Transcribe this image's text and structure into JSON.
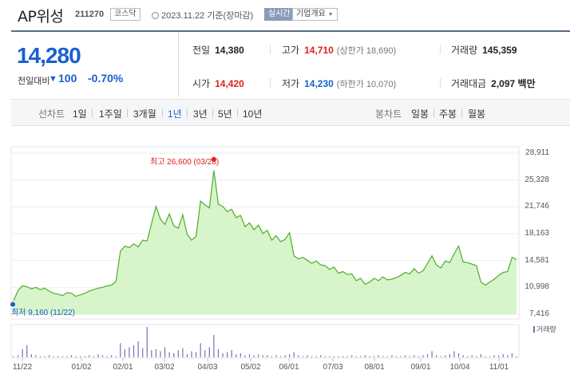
{
  "header": {
    "stock_name": "AP위성",
    "stock_code": "211270",
    "market": "코스닥",
    "date_text": "2023.11.22 기준(장마감)",
    "realtime_label": "실시간",
    "company_info_label": "기업개요"
  },
  "price": {
    "current": "14,280",
    "change_label": "전일대비",
    "change_direction": "down",
    "change_arrow": "▼",
    "change_amount": "100",
    "change_pct": "-0.70%"
  },
  "stats": {
    "prev_close": {
      "label": "전일",
      "value": "14,380"
    },
    "high": {
      "label": "고가",
      "value": "14,710",
      "sub": "(상한가 18,690)"
    },
    "volume": {
      "label": "거래량",
      "value": "145,359"
    },
    "open": {
      "label": "시가",
      "value": "14,420"
    },
    "low": {
      "label": "저가",
      "value": "14,230",
      "sub": "(하한가 10,070)"
    },
    "trade_value": {
      "label": "거래대금",
      "value": "2,097",
      "unit": "백만"
    }
  },
  "line_chart_tabs": {
    "label": "선차트",
    "items": [
      "1일",
      "1주일",
      "3개월",
      "1년",
      "3년",
      "5년",
      "10년"
    ],
    "active": "1년"
  },
  "candle_chart_tabs": {
    "label": "봉차트",
    "items": [
      "일봉",
      "주봉",
      "월봉"
    ]
  },
  "colors": {
    "up": "#e0201c",
    "down": "#1a5fd0",
    "line": "#4caf28",
    "fill": "#c8f0b4",
    "volume": "#7a6fb5"
  },
  "chart_data": {
    "type": "area",
    "y_ticks": [
      "28,911",
      "25,328",
      "21,746",
      "18,163",
      "14,581",
      "10,998",
      "7,416"
    ],
    "y_tick_values": [
      28911,
      25328,
      21746,
      18163,
      14581,
      10998,
      7416
    ],
    "ylim": [
      7416,
      28911
    ],
    "x_ticks": [
      "11/22",
      "01/02",
      "02/01",
      "03/02",
      "04/03",
      "05/02",
      "06/01",
      "07/03",
      "08/01",
      "09/01",
      "10/04",
      "11/01"
    ],
    "annotations": {
      "high": {
        "text": "최고 26,600 (03/28)",
        "value": 26600,
        "x": "03/28"
      },
      "low": {
        "text": "최저 9,160 (11/22)",
        "value": 9160,
        "x": "11/22"
      }
    },
    "volume_legend": "거래량",
    "price_series": [
      9200,
      10600,
      11200,
      11100,
      10800,
      11000,
      10700,
      10900,
      10500,
      10200,
      10100,
      9900,
      10300,
      10200,
      9800,
      10000,
      10200,
      10500,
      10700,
      10900,
      11000,
      11200,
      11300,
      11800,
      15800,
      16500,
      16300,
      16800,
      16400,
      17300,
      17200,
      19500,
      21800,
      20100,
      19400,
      20800,
      19200,
      18900,
      20700,
      18100,
      17300,
      17800,
      22500,
      22000,
      21600,
      26600,
      22100,
      21800,
      21100,
      21400,
      20300,
      20600,
      19100,
      19600,
      18700,
      19300,
      18200,
      18600,
      17300,
      17900,
      17100,
      17400,
      18300,
      15200,
      14800,
      15000,
      14600,
      14200,
      14500,
      14000,
      13900,
      13400,
      13700,
      12900,
      13100,
      12700,
      12800,
      11900,
      12200,
      11400,
      11700,
      12200,
      11900,
      12400,
      12000,
      12100,
      12300,
      12600,
      13000,
      12800,
      13500,
      12900,
      13200,
      14200,
      15200,
      14000,
      13600,
      14500,
      14300,
      15500,
      16500,
      14400,
      14300,
      14100,
      13900,
      11700,
      11300,
      11700,
      12100,
      12600,
      13000,
      13100,
      15000,
      14700
    ],
    "volume_series": [
      1,
      2,
      8,
      12,
      3,
      2,
      1,
      1,
      2,
      1,
      1,
      1,
      1,
      2,
      1,
      1,
      1,
      2,
      1,
      3,
      2,
      1,
      2,
      1,
      14,
      8,
      10,
      12,
      16,
      9,
      30,
      7,
      8,
      6,
      10,
      5,
      4,
      7,
      9,
      3,
      6,
      5,
      14,
      7,
      10,
      22,
      8,
      4,
      5,
      7,
      3,
      4,
      2,
      3,
      2,
      3,
      2,
      2,
      1,
      2,
      1,
      2,
      3,
      5,
      2,
      1,
      2,
      1,
      1,
      2,
      1,
      1,
      1,
      1,
      1,
      1,
      2,
      1,
      1,
      2,
      1,
      1,
      2,
      1,
      1,
      2,
      1,
      1,
      2,
      1,
      2,
      1,
      2,
      3,
      6,
      2,
      1,
      2,
      3,
      6,
      4,
      2,
      1,
      2,
      1,
      3,
      1,
      1,
      2,
      2,
      3,
      2,
      4,
      1
    ]
  }
}
